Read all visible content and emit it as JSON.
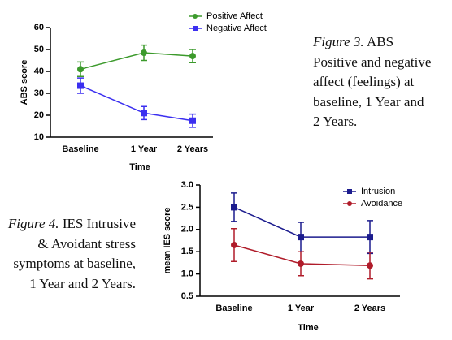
{
  "chart_data": [
    {
      "type": "line",
      "ylabel": "ABS score",
      "xlabel": "Time",
      "categories": [
        "Baseline",
        "1 Year",
        "2 Years"
      ],
      "ylim": [
        10,
        60
      ],
      "yticks": [
        10,
        20,
        30,
        40,
        50,
        60
      ],
      "series": [
        {
          "name": "Positive Affect",
          "color": "#3c9a2c",
          "marker": "circle",
          "values": [
            41,
            48.5,
            47
          ],
          "errors": [
            3.3,
            3.5,
            3
          ]
        },
        {
          "name": "Negative Affect",
          "color": "#3b2ff0",
          "marker": "square",
          "values": [
            33.5,
            21,
            17.5
          ],
          "errors": [
            3.5,
            3,
            3
          ]
        }
      ]
    },
    {
      "type": "line",
      "ylabel": "mean IES score",
      "xlabel": "Time",
      "categories": [
        "Baseline",
        "1 Year",
        "2 Years"
      ],
      "ylim": [
        0.5,
        3
      ],
      "yticks": [
        0.5,
        {
          "value": 1,
          "label": "1.0"
        },
        1.5,
        {
          "value": 2,
          "label": "2.0"
        },
        2.5,
        {
          "value": 3,
          "label": "3.0"
        }
      ],
      "series": [
        {
          "name": "Intrusion",
          "color": "#1c1c8e",
          "marker": "square",
          "values": [
            2.5,
            1.83,
            1.83
          ],
          "errors": [
            0.32,
            0.33,
            0.37
          ]
        },
        {
          "name": "Avoidance",
          "color": "#b01c2a",
          "marker": "circle",
          "values": [
            1.65,
            1.23,
            1.19
          ],
          "errors": [
            0.37,
            0.27,
            0.3
          ]
        }
      ]
    }
  ],
  "captions": [
    {
      "label": "Figure 3.",
      "lines": [
        "ABS",
        "Positive and negative",
        "affect (feelings) at",
        "baseline, 1 Year and",
        "2 Years."
      ]
    },
    {
      "label": "Figure 4.",
      "lines": [
        "IES Intrusive",
        "& Avoidant stress",
        "symptoms at baseline,",
        "1 Year and 2 Years."
      ]
    }
  ]
}
